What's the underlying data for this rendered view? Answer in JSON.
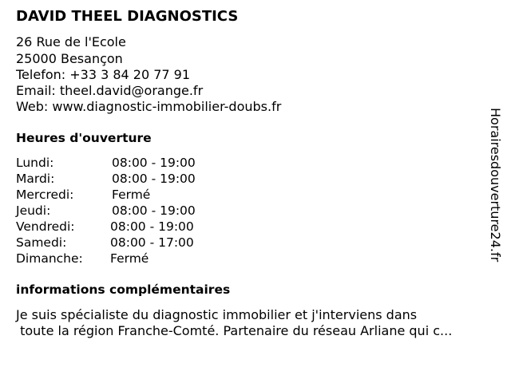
{
  "business": {
    "name": "DAVID THEEL DIAGNOSTICS",
    "address_line1": "26 Rue de l'Ecole",
    "address_line2": "25000 Besançon",
    "phone": "Telefon: +33 3 84 20 77 91",
    "email": "Email: theel.david@orange.fr",
    "web": "Web: www.diagnostic-immobilier-doubs.fr"
  },
  "hours": {
    "heading": "Heures d'ouverture",
    "days": [
      {
        "day": "Lundi:",
        "time": "08:00 - 19:00"
      },
      {
        "day": "Mardi:",
        "time": "08:00 - 19:00"
      },
      {
        "day": "Mercredi:",
        "time": "Fermé"
      },
      {
        "day": "Jeudi:",
        "time": "08:00 - 19:00"
      },
      {
        "day": "Vendredi:",
        "time": "08:00 - 19:00"
      },
      {
        "day": "Samedi:",
        "time": "08:00 - 17:00"
      },
      {
        "day": "Dimanche:",
        "time": "Fermé"
      }
    ]
  },
  "info": {
    "heading": "informations complémentaires",
    "line1": "Je suis spécialiste du diagnostic immobilier et j'interviens dans",
    "line2": " toute la région Franche-Comté. Partenaire du réseau Arliane qui c..."
  },
  "watermark": "Horairesdouverture24.fr"
}
